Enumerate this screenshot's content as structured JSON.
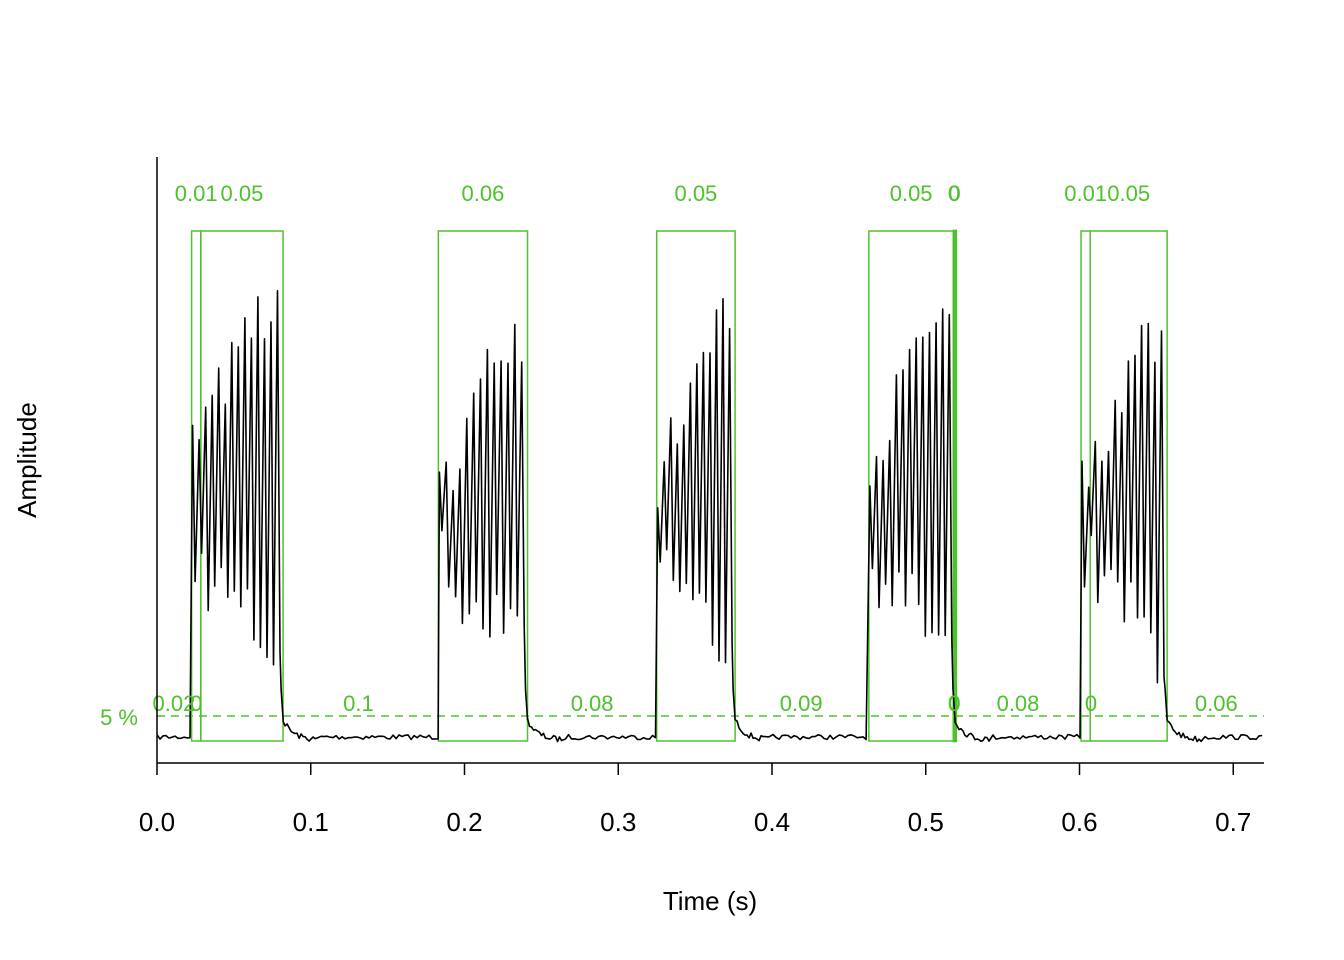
{
  "chart_data": {
    "type": "line",
    "title": "",
    "xlabel": "Time (s)",
    "ylabel": "Amplitude",
    "xlim": [
      0,
      0.72
    ],
    "xticks": [
      {
        "value": 0.0,
        "label": "0.0"
      },
      {
        "value": 0.1,
        "label": "0.1"
      },
      {
        "value": 0.2,
        "label": "0.2"
      },
      {
        "value": 0.3,
        "label": "0.3"
      },
      {
        "value": 0.4,
        "label": "0.4"
      },
      {
        "value": 0.5,
        "label": "0.5"
      },
      {
        "value": 0.6,
        "label": "0.6"
      },
      {
        "value": 0.7,
        "label": "0.7"
      }
    ],
    "ylim": [
      0,
      1
    ],
    "grid": false,
    "colors": {
      "detection": "#4dc22d",
      "envelope": "#000000"
    },
    "threshold": {
      "value": 0.05,
      "label": "5 %"
    },
    "envelope_bursts": [
      {
        "start": 0.0225,
        "end": 0.082,
        "first_peak": 0.58,
        "late_peak": 0.83
      },
      {
        "start": 0.183,
        "end": 0.241,
        "first_peak": 0.48,
        "late_peak": 0.8
      },
      {
        "start": 0.325,
        "end": 0.376,
        "first_peak": 0.5,
        "late_peak": 0.84
      },
      {
        "start": 0.463,
        "end": 0.519,
        "first_peak": 0.55,
        "late_peak": 0.82
      },
      {
        "start": 0.601,
        "end": 0.657,
        "first_peak": 0.5,
        "late_peak": 0.79
      }
    ],
    "detected_signals": [
      {
        "start": 0.0225,
        "end": 0.0285,
        "duration_label": "0.01"
      },
      {
        "start": 0.0285,
        "end": 0.082,
        "duration_label": "0.05"
      },
      {
        "start": 0.183,
        "end": 0.241,
        "duration_label": "0.06"
      },
      {
        "start": 0.325,
        "end": 0.376,
        "duration_label": "0.05"
      },
      {
        "start": 0.463,
        "end": 0.518,
        "duration_label": "0.05"
      },
      {
        "start": 0.5182,
        "end": 0.5186,
        "duration_label": "0"
      },
      {
        "start": 0.5186,
        "end": 0.519,
        "duration_label": "0"
      },
      {
        "start": 0.601,
        "end": 0.607,
        "duration_label": "0.01"
      },
      {
        "start": 0.607,
        "end": 0.657,
        "duration_label": "0.05"
      }
    ],
    "gap_labels": [
      {
        "x": 0.011,
        "label": "0.02"
      },
      {
        "x": 0.0255,
        "label": "0"
      },
      {
        "x": 0.131,
        "label": "0.1"
      },
      {
        "x": 0.283,
        "label": "0.08"
      },
      {
        "x": 0.419,
        "label": "0.09"
      },
      {
        "x": 0.5184,
        "label": "0"
      },
      {
        "x": 0.5187,
        "label": "0"
      },
      {
        "x": 0.56,
        "label": "0.08"
      },
      {
        "x": 0.6075,
        "label": "0"
      },
      {
        "x": 0.689,
        "label": "0.06"
      }
    ]
  }
}
